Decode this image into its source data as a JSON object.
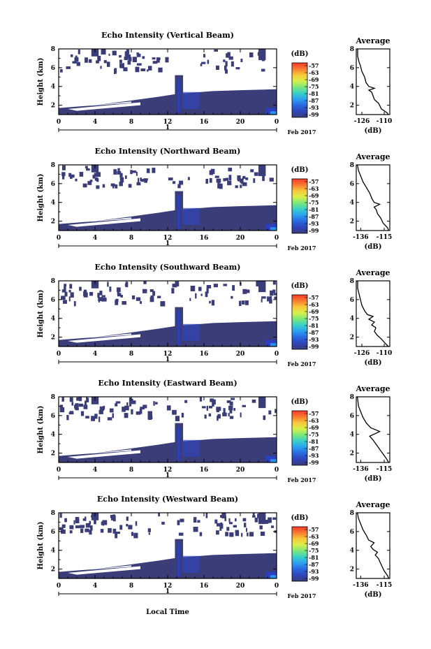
{
  "figure": {
    "x_axis_label": "Local Time",
    "date_label": "Feb 2017",
    "day_label": "1",
    "average_title": "Average",
    "avg_xlabel": "(dB)",
    "colorbar_unit": "(dB)"
  },
  "colors": {
    "background": "#ffffff",
    "echo_fill": "#3a3d78",
    "echo_strong": "#2a40c0",
    "echo_peak": "#2a90e8"
  },
  "colorbar": {
    "ticks": [
      "-57",
      "-63",
      "-69",
      "-75",
      "-81",
      "-87",
      "-93",
      "-99"
    ],
    "gradient": [
      "#f53a2a",
      "#f87a30",
      "#f8c83a",
      "#d8f04a",
      "#7ae87a",
      "#3ad0c8",
      "#2aa0f0",
      "#2a68e0",
      "#2f44b8",
      "#3a3d78"
    ]
  },
  "chart_data": [
    {
      "type": "heatmap",
      "title": "Echo Intensity (Vertical Beam)",
      "ylabel": "Height (km)",
      "xlim": [
        0,
        24
      ],
      "ylim": [
        1,
        8
      ],
      "x_ticks": [
        "0",
        "4",
        "8",
        "12",
        "16",
        "20",
        "0"
      ],
      "y_ticks": [
        "2",
        "4",
        "6",
        "8"
      ],
      "average": {
        "title": "Average",
        "xlabel": "(dB)",
        "x_ticks": [
          "-126",
          "-110"
        ],
        "xlim": [
          -130,
          -106
        ],
        "ylim": [
          1,
          8
        ],
        "profile": [
          [
            -107,
            1.0
          ],
          [
            -108,
            1.2
          ],
          [
            -112,
            1.6
          ],
          [
            -114,
            2.2
          ],
          [
            -117,
            2.6
          ],
          [
            -118,
            3.0
          ],
          [
            -119,
            3.4
          ],
          [
            -121,
            3.6
          ],
          [
            -117,
            3.8
          ],
          [
            -121,
            4.0
          ],
          [
            -123,
            4.4
          ],
          [
            -124,
            5.0
          ],
          [
            -126,
            5.6
          ],
          [
            -127,
            6.2
          ],
          [
            -128,
            6.6
          ],
          [
            -129,
            7.2
          ],
          [
            -129,
            8.0
          ]
        ]
      }
    },
    {
      "type": "heatmap",
      "title": "Echo Intensity (Northward Beam)",
      "ylabel": "Height (km)",
      "xlim": [
        0,
        24
      ],
      "ylim": [
        1,
        8
      ],
      "x_ticks": [
        "0",
        "4",
        "8",
        "12",
        "16",
        "20",
        "0"
      ],
      "y_ticks": [
        "2",
        "4",
        "6",
        "8"
      ],
      "average": {
        "title": "Average",
        "xlabel": "(dB)",
        "x_ticks": [
          "-136",
          "-115"
        ],
        "xlim": [
          -140,
          -110
        ],
        "ylim": [
          1,
          8
        ],
        "profile": [
          [
            -111,
            1.0
          ],
          [
            -112,
            1.3
          ],
          [
            -116,
            1.8
          ],
          [
            -118,
            2.3
          ],
          [
            -121,
            2.8
          ],
          [
            -122,
            3.2
          ],
          [
            -124,
            3.5
          ],
          [
            -119,
            3.8
          ],
          [
            -124,
            4.0
          ],
          [
            -126,
            4.4
          ],
          [
            -128,
            5.0
          ],
          [
            -131,
            5.6
          ],
          [
            -134,
            6.2
          ],
          [
            -136,
            6.8
          ],
          [
            -138,
            7.4
          ],
          [
            -139,
            8.0
          ]
        ]
      }
    },
    {
      "type": "heatmap",
      "title": "Echo Intensity (Southward Beam)",
      "ylabel": "Height (km)",
      "xlim": [
        0,
        24
      ],
      "ylim": [
        1,
        8
      ],
      "x_ticks": [
        "0",
        "4",
        "8",
        "12",
        "16",
        "20",
        "0"
      ],
      "y_ticks": [
        "2",
        "4",
        "6",
        "8"
      ],
      "average": {
        "title": "Average",
        "xlabel": "(dB)",
        "x_ticks": [
          "-126",
          "-110"
        ],
        "xlim": [
          -130,
          -106
        ],
        "ylim": [
          1,
          8
        ],
        "profile": [
          [
            -107,
            1.0
          ],
          [
            -109,
            1.3
          ],
          [
            -112,
            1.8
          ],
          [
            -115,
            2.2
          ],
          [
            -117,
            2.6
          ],
          [
            -116,
            3.0
          ],
          [
            -119,
            3.3
          ],
          [
            -117,
            3.6
          ],
          [
            -121,
            3.9
          ],
          [
            -118,
            4.2
          ],
          [
            -122,
            4.4
          ],
          [
            -124,
            4.8
          ],
          [
            -126,
            5.4
          ],
          [
            -127,
            6.0
          ],
          [
            -128,
            6.6
          ],
          [
            -129,
            7.2
          ],
          [
            -129,
            8.0
          ]
        ]
      }
    },
    {
      "type": "heatmap",
      "title": "Echo Intensity (Eastward Beam)",
      "ylabel": "Height (km)",
      "xlim": [
        0,
        24
      ],
      "ylim": [
        1,
        8
      ],
      "x_ticks": [
        "0",
        "4",
        "8",
        "12",
        "16",
        "20",
        "0"
      ],
      "y_ticks": [
        "2",
        "4",
        "6",
        "8"
      ],
      "average": {
        "title": "Average",
        "xlabel": "(dB)",
        "x_ticks": [
          "-136",
          "-115"
        ],
        "xlim": [
          -140,
          -110
        ],
        "ylim": [
          1,
          8
        ],
        "profile": [
          [
            -111,
            1.0
          ],
          [
            -113,
            1.4
          ],
          [
            -116,
            1.9
          ],
          [
            -119,
            2.4
          ],
          [
            -122,
            2.9
          ],
          [
            -125,
            3.4
          ],
          [
            -128,
            3.8
          ],
          [
            -119,
            4.3
          ],
          [
            -127,
            4.7
          ],
          [
            -131,
            5.2
          ],
          [
            -134,
            5.8
          ],
          [
            -136,
            6.4
          ],
          [
            -138,
            7.0
          ],
          [
            -139,
            8.0
          ]
        ]
      }
    },
    {
      "type": "heatmap",
      "title": "Echo Intensity (Westward Beam)",
      "ylabel": "Height (km)",
      "xlim": [
        0,
        24
      ],
      "ylim": [
        1,
        8
      ],
      "x_ticks": [
        "0",
        "4",
        "8",
        "12",
        "16",
        "20",
        "0"
      ],
      "y_ticks": [
        "2",
        "4",
        "6",
        "8"
      ],
      "average": {
        "title": "Average",
        "xlabel": "(dB)",
        "x_ticks": [
          "-136",
          "-115"
        ],
        "xlim": [
          -140,
          -110
        ],
        "ylim": [
          1,
          8
        ],
        "profile": [
          [
            -111,
            1.0
          ],
          [
            -112,
            1.3
          ],
          [
            -115,
            1.8
          ],
          [
            -117,
            2.3
          ],
          [
            -119,
            2.8
          ],
          [
            -120,
            3.1
          ],
          [
            -123,
            3.5
          ],
          [
            -121,
            3.8
          ],
          [
            -125,
            4.1
          ],
          [
            -127,
            4.4
          ],
          [
            -124,
            4.8
          ],
          [
            -129,
            5.1
          ],
          [
            -131,
            5.6
          ],
          [
            -134,
            6.2
          ],
          [
            -136,
            6.8
          ],
          [
            -138,
            7.4
          ],
          [
            -139,
            8.0
          ]
        ]
      }
    }
  ]
}
